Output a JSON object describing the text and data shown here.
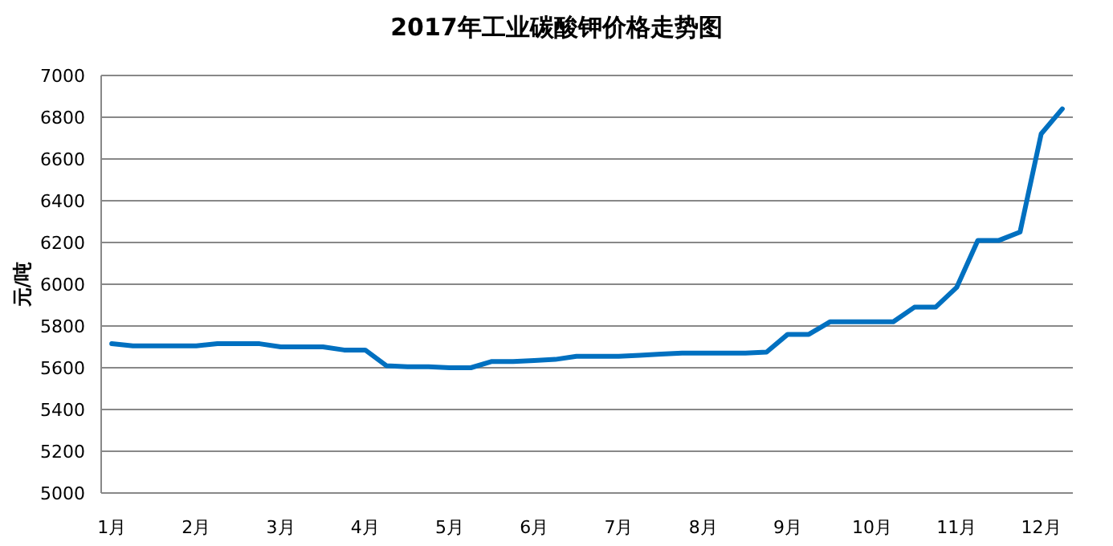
{
  "chart_data": {
    "type": "line",
    "title": "2017年工业碳酸钾价格走势图",
    "ylabel": "元/吨",
    "categories": [
      "1月",
      null,
      null,
      null,
      "2月",
      null,
      null,
      null,
      "3月",
      null,
      null,
      null,
      "4月",
      null,
      null,
      null,
      "5月",
      null,
      null,
      null,
      "6月",
      null,
      null,
      null,
      "7月",
      null,
      null,
      null,
      "8月",
      null,
      null,
      null,
      "9月",
      null,
      null,
      null,
      "10月",
      null,
      null,
      null,
      "11月",
      null,
      null,
      null,
      "12月",
      null
    ],
    "series": [
      {
        "color": "#0070c0",
        "values": [
          5715,
          5705,
          5705,
          5705,
          5705,
          5715,
          5715,
          5715,
          5700,
          5700,
          5700,
          5685,
          5685,
          5610,
          5605,
          5605,
          5600,
          5600,
          5630,
          5630,
          5635,
          5640,
          5655,
          5655,
          5655,
          5660,
          5665,
          5670,
          5670,
          5670,
          5670,
          5675,
          5760,
          5760,
          5820,
          5820,
          5820,
          5820,
          5890,
          5890,
          5985,
          6210,
          6210,
          6250,
          6720,
          6840
        ]
      }
    ],
    "ylim": [
      5000,
      7000
    ],
    "yticks": [
      5000,
      5200,
      5400,
      5600,
      5800,
      6000,
      6200,
      6400,
      6600,
      6800,
      7000
    ],
    "grid": "y"
  }
}
